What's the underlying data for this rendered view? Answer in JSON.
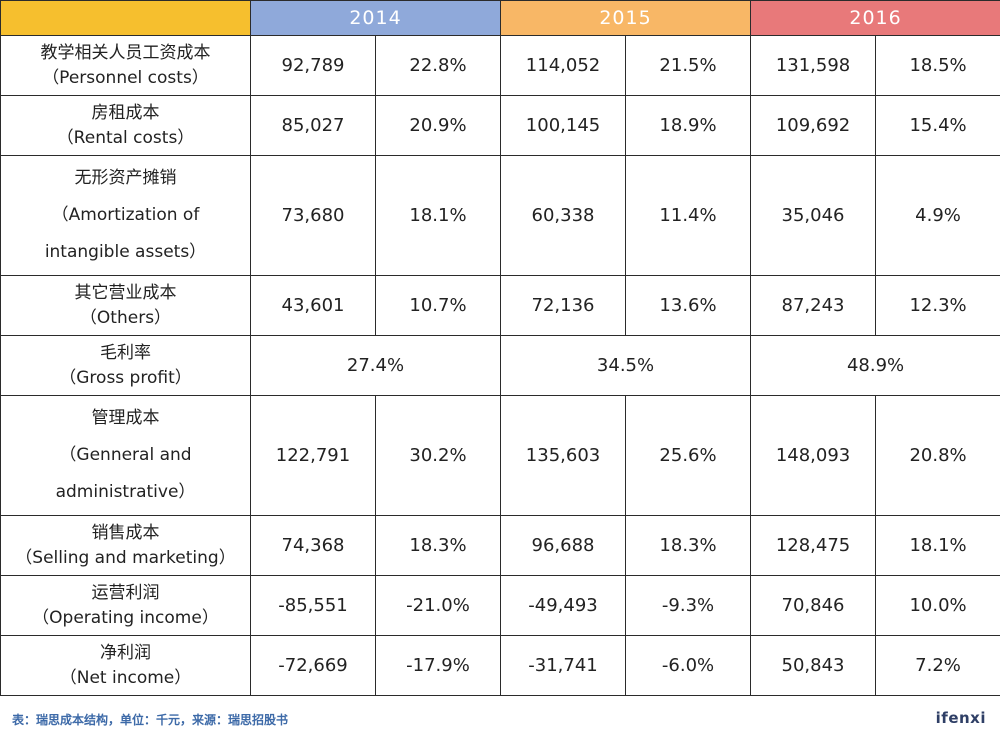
{
  "chart_data": {
    "type": "table",
    "years": [
      "2014",
      "2015",
      "2016"
    ],
    "rows": [
      {
        "label_cn": "教学相关人员工资成本",
        "label_en": "（Personnel costs）",
        "cells": [
          [
            "92,789",
            "22.8%"
          ],
          [
            "114,052",
            "21.5%"
          ],
          [
            "131,598",
            "18.5%"
          ]
        ]
      },
      {
        "label_cn": "房租成本",
        "label_en": "（Rental costs）",
        "cells": [
          [
            "85,027",
            "20.9%"
          ],
          [
            "100,145",
            "18.9%"
          ],
          [
            "109,692",
            "15.4%"
          ]
        ]
      },
      {
        "label_cn": "无形资产摊销",
        "label_en": "（Amortization of",
        "label_en2": "intangible assets）",
        "cells": [
          [
            "73,680",
            "18.1%"
          ],
          [
            "60,338",
            "11.4%"
          ],
          [
            "35,046",
            "4.9%"
          ]
        ]
      },
      {
        "label_cn": "其它营业成本",
        "label_en": "（Others）",
        "cells": [
          [
            "43,601",
            "10.7%"
          ],
          [
            "72,136",
            "13.6%"
          ],
          [
            "87,243",
            "12.3%"
          ]
        ]
      },
      {
        "label_cn": "毛利率",
        "label_en": "（Gross profit）",
        "merged": [
          "27.4%",
          "34.5%",
          "48.9%"
        ]
      },
      {
        "label_cn": "管理成本",
        "label_en": "（Genneral and",
        "label_en2": "administrative）",
        "cells": [
          [
            "122,791",
            "30.2%"
          ],
          [
            "135,603",
            "25.6%"
          ],
          [
            "148,093",
            "20.8%"
          ]
        ]
      },
      {
        "label_cn": "销售成本",
        "label_en": "（Selling and marketing）",
        "cells": [
          [
            "74,368",
            "18.3%"
          ],
          [
            "96,688",
            "18.3%"
          ],
          [
            "128,475",
            "18.1%"
          ]
        ]
      },
      {
        "label_cn": "运营利润",
        "label_en": "（Operating income）",
        "cells": [
          [
            "-85,551",
            "-21.0%"
          ],
          [
            "-49,493",
            "-9.3%"
          ],
          [
            "70,846",
            "10.0%"
          ]
        ]
      },
      {
        "label_cn": "净利润",
        "label_en": "（Net income）",
        "cells": [
          [
            "-72,669",
            "-17.9%"
          ],
          [
            "-31,741",
            "-6.0%"
          ],
          [
            "50,843",
            "7.2%"
          ]
        ]
      }
    ]
  },
  "header_colors": {
    "corner": "#f6bf2e",
    "2014": "#8fa9da",
    "2015": "#f8b766",
    "2016": "#e8797a"
  },
  "footer": {
    "note": "表：瑞思成本结构，单位：千元，来源：瑞思招股书",
    "brand": "ifenxi"
  }
}
